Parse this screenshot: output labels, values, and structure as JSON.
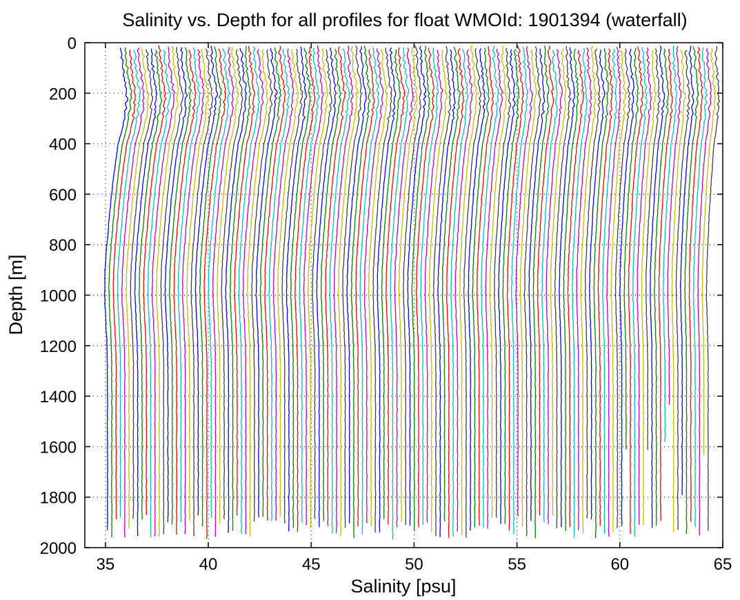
{
  "chart_data": {
    "type": "line",
    "title": "Salinity vs. Depth for all profiles for float WMOId: 1901394 (waterfall)",
    "xlabel": "Salinity [psu]",
    "ylabel": "Depth [m]",
    "xlim": [
      34,
      65
    ],
    "ylim": [
      2000,
      0
    ],
    "y_reversed": true,
    "grid": true,
    "xticks": [
      35,
      40,
      45,
      50,
      55,
      60,
      65
    ],
    "yticks": [
      0,
      200,
      400,
      600,
      800,
      1000,
      1200,
      1400,
      1600,
      1800,
      2000
    ],
    "profile_count": 140,
    "waterfall_offset_psu": 0.21,
    "base_profile": {
      "depth": [
        0,
        50,
        100,
        150,
        200,
        250,
        300,
        350,
        400,
        500,
        600,
        700,
        800,
        900,
        1000,
        1100,
        1200,
        1300,
        1400,
        1500,
        1600,
        1700,
        1800,
        1900
      ],
      "salinity": [
        35.75,
        35.8,
        35.85,
        35.95,
        36.05,
        36.0,
        35.92,
        35.8,
        35.62,
        35.45,
        35.3,
        35.18,
        35.07,
        34.98,
        34.96,
        35.02,
        35.08,
        35.1,
        35.1,
        35.1,
        35.1,
        35.1,
        35.1,
        35.1
      ]
    },
    "colors": [
      "#0000ff",
      "#008000",
      "#ff0000",
      "#00bfbf",
      "#bf00bf",
      "#bfbf00",
      "#404040"
    ]
  }
}
